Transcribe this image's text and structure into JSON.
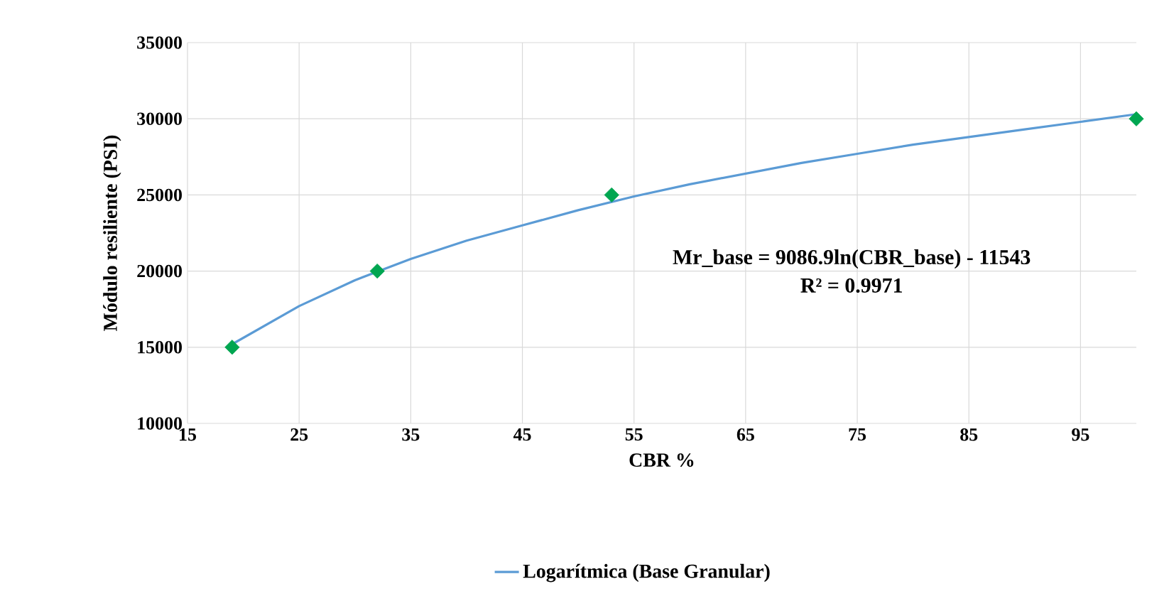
{
  "chart_data": {
    "type": "scatter",
    "xlabel": "CBR %",
    "ylabel": "Módulo resiliente (PSI)",
    "xlim": [
      15,
      100
    ],
    "xticks": [
      15,
      25,
      35,
      45,
      55,
      65,
      75,
      85,
      95
    ],
    "ylim": [
      10000,
      35000
    ],
    "yticks": [
      10000,
      15000,
      20000,
      25000,
      30000,
      35000
    ],
    "grid": true,
    "legend": "bottom",
    "series": [
      {
        "color": "#00a651",
        "marker": "diamond",
        "x": [
          19,
          32,
          53,
          100
        ],
        "values": [
          15000,
          20000,
          25000,
          30000
        ]
      },
      {
        "type": "line",
        "name": "Logarítmica (Base Granular)",
        "color": "#5b9bd5",
        "line_style": "solid",
        "marker": "none",
        "x": [
          19,
          25,
          30,
          35,
          40,
          45,
          50,
          55,
          60,
          65,
          70,
          75,
          80,
          85,
          90,
          95,
          100
        ],
        "values": [
          15200,
          17700,
          19400,
          20800,
          22000,
          23000,
          24000,
          24900,
          25700,
          26400,
          27100,
          27700,
          28300,
          28800,
          29300,
          29800,
          30300
        ]
      }
    ],
    "annotations": [
      "Mr_base = 9086.9ln(CBR_base) - 11543",
      "R² = 0.9971"
    ]
  }
}
